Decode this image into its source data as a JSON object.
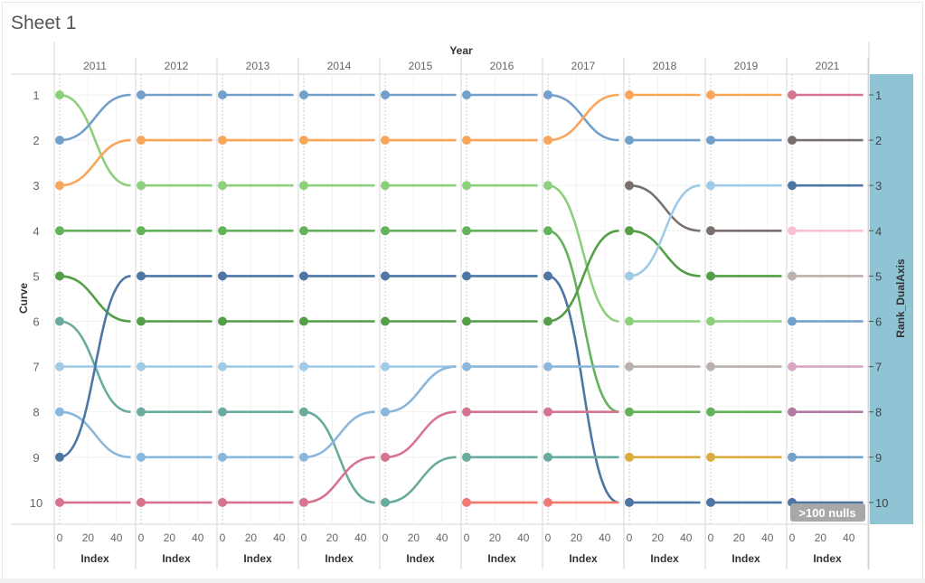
{
  "sheet_title": "Sheet 1",
  "null_badge": ">100 nulls",
  "colors": {
    "blue": "#739fcb",
    "orange": "#f9a55a",
    "lgreen": "#8dd07c",
    "green": "#63b35a",
    "dgreen": "#549e48",
    "teal": "#6aab9f",
    "lblue": "#a0cbe8",
    "sky": "#8ab7dd",
    "dblue": "#4e76a5",
    "pink": "#d6738f",
    "salmon": "#f07a72",
    "brown": "#79706e",
    "grey": "#bab0ac",
    "gold": "#d9ac3d",
    "lpink": "#fabfd2",
    "orchid": "#d9a6c8",
    "mauve": "#b07aa1",
    "axis_band": "#8fc4d4"
  },
  "chart_data": {
    "type": "line",
    "title": "",
    "column_header": "Year",
    "ylabel": "Curve",
    "ylabel_right": "Rank_DualAxis",
    "xlabel": "Index",
    "xlim": [
      0,
      50
    ],
    "xticks": [
      "0",
      "20",
      "40"
    ],
    "ylim": [
      1,
      10
    ],
    "yticks": [
      "1",
      "2",
      "3",
      "4",
      "5",
      "6",
      "7",
      "8",
      "9",
      "10"
    ],
    "yticks_right": [
      "1",
      "2",
      "3",
      "4",
      "5",
      "6",
      "7",
      "8",
      "9",
      "10"
    ],
    "panels": [
      {
        "year": "2011",
        "series": [
          [
            "lgreen",
            1,
            3
          ],
          [
            "blue",
            2,
            1
          ],
          [
            "orange",
            3,
            2
          ],
          [
            "green",
            4,
            4
          ],
          [
            "dgreen",
            5,
            6
          ],
          [
            "teal",
            6,
            8
          ],
          [
            "lblue",
            7,
            7
          ],
          [
            "sky",
            8,
            9
          ],
          [
            "dblue",
            9,
            5
          ],
          [
            "pink",
            10,
            10
          ]
        ]
      },
      {
        "year": "2012",
        "series": [
          [
            "blue",
            1,
            1
          ],
          [
            "orange",
            2,
            2
          ],
          [
            "lgreen",
            3,
            3
          ],
          [
            "green",
            4,
            4
          ],
          [
            "dblue",
            5,
            5
          ],
          [
            "dgreen",
            6,
            6
          ],
          [
            "lblue",
            7,
            7
          ],
          [
            "teal",
            8,
            8
          ],
          [
            "sky",
            9,
            9
          ],
          [
            "pink",
            10,
            10
          ]
        ]
      },
      {
        "year": "2013",
        "series": [
          [
            "blue",
            1,
            1
          ],
          [
            "orange",
            2,
            2
          ],
          [
            "lgreen",
            3,
            3
          ],
          [
            "green",
            4,
            4
          ],
          [
            "dblue",
            5,
            5
          ],
          [
            "dgreen",
            6,
            6
          ],
          [
            "lblue",
            7,
            7
          ],
          [
            "teal",
            8,
            8
          ],
          [
            "sky",
            9,
            9
          ],
          [
            "pink",
            10,
            10
          ]
        ]
      },
      {
        "year": "2014",
        "series": [
          [
            "blue",
            1,
            1
          ],
          [
            "orange",
            2,
            2
          ],
          [
            "lgreen",
            3,
            3
          ],
          [
            "green",
            4,
            4
          ],
          [
            "dblue",
            5,
            5
          ],
          [
            "dgreen",
            6,
            6
          ],
          [
            "lblue",
            7,
            7
          ],
          [
            "teal",
            8,
            10
          ],
          [
            "sky",
            9,
            8
          ],
          [
            "pink",
            10,
            9
          ]
        ]
      },
      {
        "year": "2015",
        "series": [
          [
            "blue",
            1,
            1
          ],
          [
            "orange",
            2,
            2
          ],
          [
            "lgreen",
            3,
            3
          ],
          [
            "green",
            4,
            4
          ],
          [
            "dblue",
            5,
            5
          ],
          [
            "dgreen",
            6,
            6
          ],
          [
            "lblue",
            7,
            7
          ],
          [
            "sky",
            8,
            7
          ],
          [
            "pink",
            9,
            8
          ],
          [
            "teal",
            10,
            9
          ]
        ]
      },
      {
        "year": "2016",
        "series": [
          [
            "blue",
            1,
            1
          ],
          [
            "orange",
            2,
            2
          ],
          [
            "lgreen",
            3,
            3
          ],
          [
            "green",
            4,
            4
          ],
          [
            "dblue",
            5,
            5
          ],
          [
            "dgreen",
            6,
            6
          ],
          [
            "sky",
            7,
            7
          ],
          [
            "pink",
            8,
            8
          ],
          [
            "teal",
            9,
            9
          ],
          [
            "salmon",
            10,
            10
          ]
        ]
      },
      {
        "year": "2017",
        "series": [
          [
            "blue",
            1,
            2
          ],
          [
            "orange",
            2,
            1
          ],
          [
            "lgreen",
            3,
            6
          ],
          [
            "green",
            4,
            8
          ],
          [
            "dblue",
            5,
            10
          ],
          [
            "dgreen",
            6,
            4
          ],
          [
            "sky",
            7,
            7
          ],
          [
            "pink",
            8,
            8
          ],
          [
            "teal",
            9,
            9
          ],
          [
            "salmon",
            10,
            10
          ]
        ]
      },
      {
        "year": "2018",
        "series": [
          [
            "orange",
            1,
            1
          ],
          [
            "blue",
            2,
            2
          ],
          [
            "brown",
            3,
            4
          ],
          [
            "dgreen",
            4,
            5
          ],
          [
            "lblue",
            5,
            3
          ],
          [
            "lgreen",
            6,
            6
          ],
          [
            "grey",
            7,
            7
          ],
          [
            "green",
            8,
            8
          ],
          [
            "gold",
            9,
            9
          ],
          [
            "dblue",
            10,
            10
          ]
        ]
      },
      {
        "year": "2019",
        "series": [
          [
            "orange",
            1,
            1
          ],
          [
            "blue",
            2,
            2
          ],
          [
            "lblue",
            3,
            3
          ],
          [
            "brown",
            4,
            4
          ],
          [
            "dgreen",
            5,
            5
          ],
          [
            "lgreen",
            6,
            6
          ],
          [
            "grey",
            7,
            7
          ],
          [
            "green",
            8,
            8
          ],
          [
            "gold",
            9,
            9
          ],
          [
            "dblue",
            10,
            10
          ]
        ]
      },
      {
        "year": "2021",
        "series": [
          [
            "pink",
            1,
            1
          ],
          [
            "brown",
            2,
            2
          ],
          [
            "dblue",
            3,
            3
          ],
          [
            "lpink",
            4,
            4
          ],
          [
            "grey",
            5,
            5
          ],
          [
            "blue",
            6,
            6
          ],
          [
            "orchid",
            7,
            7
          ],
          [
            "mauve",
            8,
            8
          ],
          [
            "blue",
            9,
            9
          ],
          [
            "dblue",
            10,
            10
          ]
        ]
      }
    ]
  }
}
